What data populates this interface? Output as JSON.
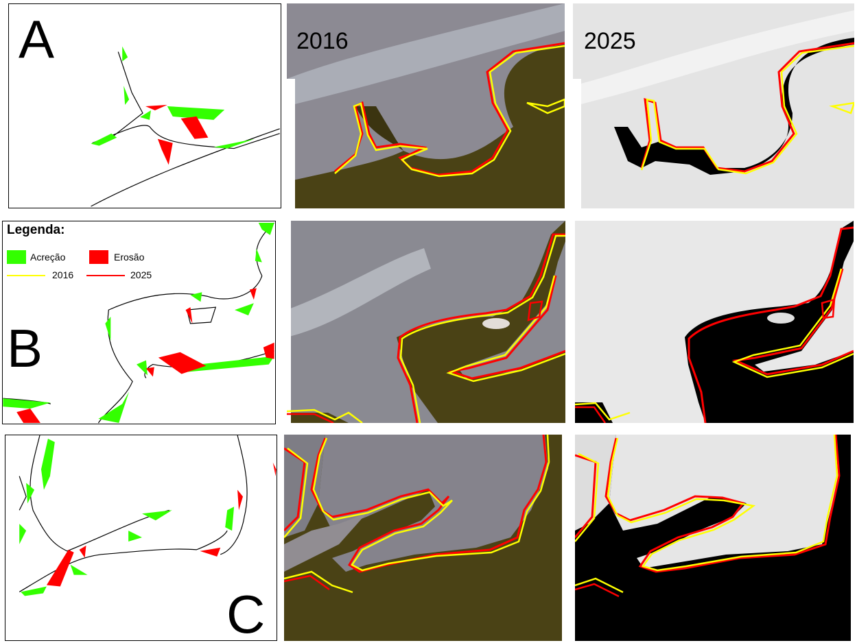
{
  "panel_labels": {
    "a": "A",
    "b": "B",
    "c": "C"
  },
  "years": {
    "left": "2016",
    "right": "2025"
  },
  "legend": {
    "title": "Legenda:",
    "accretion_label": "Acreção",
    "erosion_label": "Erosão",
    "line_2016_label": "2016",
    "line_2025_label": "2025"
  },
  "colors": {
    "accretion": "#33ff00",
    "erosion": "#ff0000",
    "line_2016": "#ffff00",
    "line_2025": "#ff0000",
    "land_rgb": "#8c8a93",
    "water_rgb": "#4a4215",
    "land_gray": "#e4e4e4",
    "water_gray": "#000000"
  }
}
